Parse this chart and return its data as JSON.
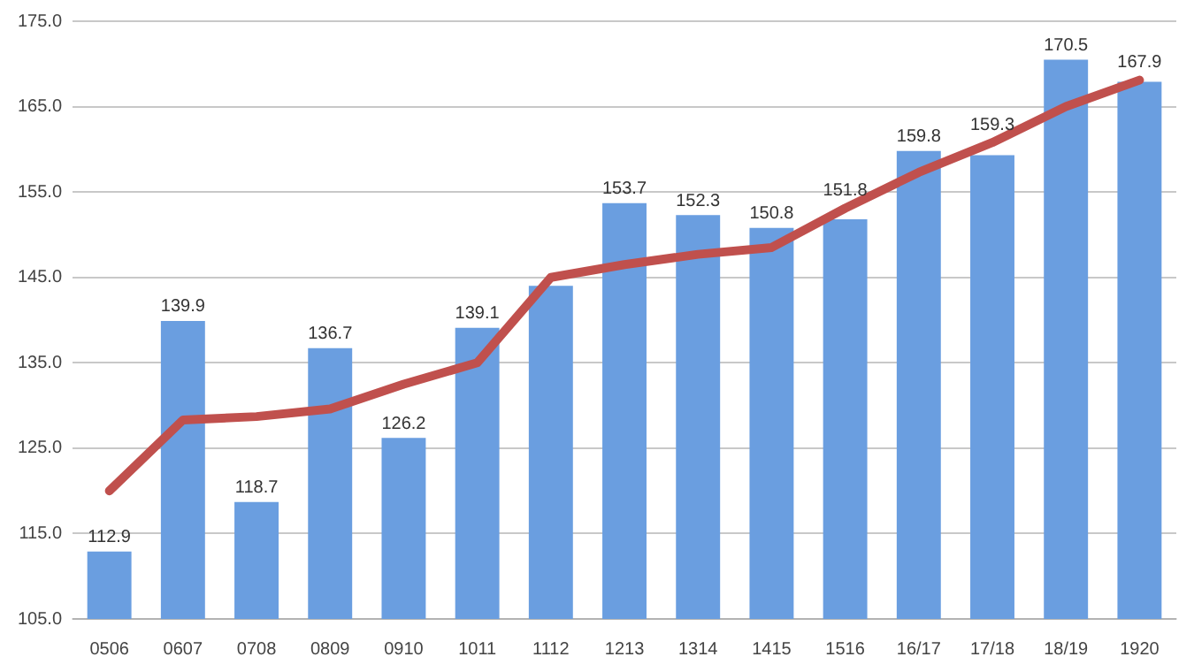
{
  "chart_data": {
    "type": "bar",
    "categories": [
      "0506",
      "0607",
      "0708",
      "0809",
      "0910",
      "1011",
      "1112",
      "1213",
      "1314",
      "1415",
      "1516",
      "16/17",
      "17/18",
      "18/19",
      "1920"
    ],
    "series": [
      {
        "color": "#6a9ee0",
        "values": [
          112.9,
          139.9,
          118.7,
          136.7,
          126.2,
          139.1,
          144.0,
          153.7,
          152.3,
          150.8,
          151.8,
          159.8,
          159.3,
          170.5,
          167.9
        ],
        "value_labels": [
          "112.9",
          "139.9",
          "118.7",
          "136.7",
          "126.2",
          "139.1",
          null,
          "153.7",
          "152.3",
          "150.8",
          "151.8",
          "159.8",
          "159.3",
          "170.5",
          "167.9"
        ]
      },
      {
        "type": "line",
        "color": "#c0504d",
        "values": [
          120.0,
          128.3,
          128.7,
          129.6,
          132.5,
          135.0,
          145.0,
          146.5,
          147.7,
          148.5,
          153.1,
          157.3,
          160.8,
          165.0,
          168.1
        ]
      }
    ],
    "ylim": [
      105,
      175
    ],
    "yticks": [
      {
        "value": 105,
        "label": "105.0"
      },
      {
        "value": 115,
        "label": "115.0"
      },
      {
        "value": 125,
        "label": "125.0"
      },
      {
        "value": 135,
        "label": "135.0"
      },
      {
        "value": 145,
        "label": "145.0"
      },
      {
        "value": 155,
        "label": "155.0"
      },
      {
        "value": 165,
        "label": "165.0"
      },
      {
        "value": 175,
        "label": "175.0"
      }
    ],
    "grid": "y",
    "legend": false,
    "marker": "none",
    "line_style": "solid"
  }
}
